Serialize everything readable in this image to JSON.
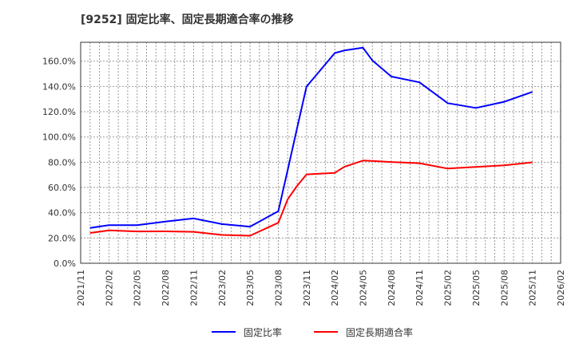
{
  "title": "[9252]  固定比率、固定長期適合率の推移",
  "legend": {
    "items": [
      {
        "label": "固定比率",
        "color": "#0000ff"
      },
      {
        "label": "固定長期適合率",
        "color": "#ff0000"
      }
    ]
  },
  "chart_data": {
    "type": "line",
    "title": "[9252]  固定比率、固定長期適合率の推移",
    "xlabel": "",
    "ylabel": "",
    "ylim": [
      0,
      175
    ],
    "grid": true,
    "legend_position": "bottom",
    "y_ticks": [
      "0.0%",
      "20.0%",
      "40.0%",
      "60.0%",
      "80.0%",
      "100.0%",
      "120.0%",
      "140.0%",
      "160.0%"
    ],
    "y_tick_values": [
      0,
      20,
      40,
      60,
      80,
      100,
      120,
      140,
      160
    ],
    "x_ticks": [
      "2021/11",
      "2022/02",
      "2022/05",
      "2022/08",
      "2022/11",
      "2023/02",
      "2023/05",
      "2023/08",
      "2023/11",
      "2024/02",
      "2024/05",
      "2024/08",
      "2024/11",
      "2025/02",
      "2025/05",
      "2025/08",
      "2025/11",
      "2026/02"
    ],
    "x": [
      "2021/12",
      "2022/02",
      "2022/05",
      "2022/08",
      "2022/11",
      "2023/02",
      "2023/05",
      "2023/08",
      "2023/09",
      "2023/10",
      "2023/11",
      "2024/02",
      "2024/03",
      "2024/05",
      "2024/06",
      "2024/08",
      "2024/11",
      "2025/02",
      "2025/05",
      "2025/08",
      "2025/11"
    ],
    "x_month_index": [
      1,
      3,
      6,
      9,
      12,
      15,
      18,
      21,
      22,
      23,
      24,
      27,
      28,
      30,
      31,
      33,
      36,
      39,
      42,
      45,
      48
    ],
    "series": [
      {
        "name": "固定比率",
        "color": "#0000ff",
        "values": [
          28.0,
          30.2,
          30.2,
          33.0,
          35.5,
          31.0,
          29.0,
          41.2,
          74.0,
          107.0,
          139.9,
          166.5,
          168.5,
          170.7,
          160.6,
          147.9,
          143.3,
          126.8,
          123.0,
          127.9,
          135.7
        ]
      },
      {
        "name": "固定長期適合率",
        "color": "#ff0000",
        "values": [
          24.0,
          26.0,
          25.2,
          25.3,
          24.9,
          22.4,
          21.8,
          32.1,
          50.7,
          61.3,
          70.4,
          71.6,
          76.3,
          81.3,
          81.0,
          80.2,
          79.2,
          75.0,
          76.3,
          77.5,
          79.9
        ]
      }
    ]
  }
}
